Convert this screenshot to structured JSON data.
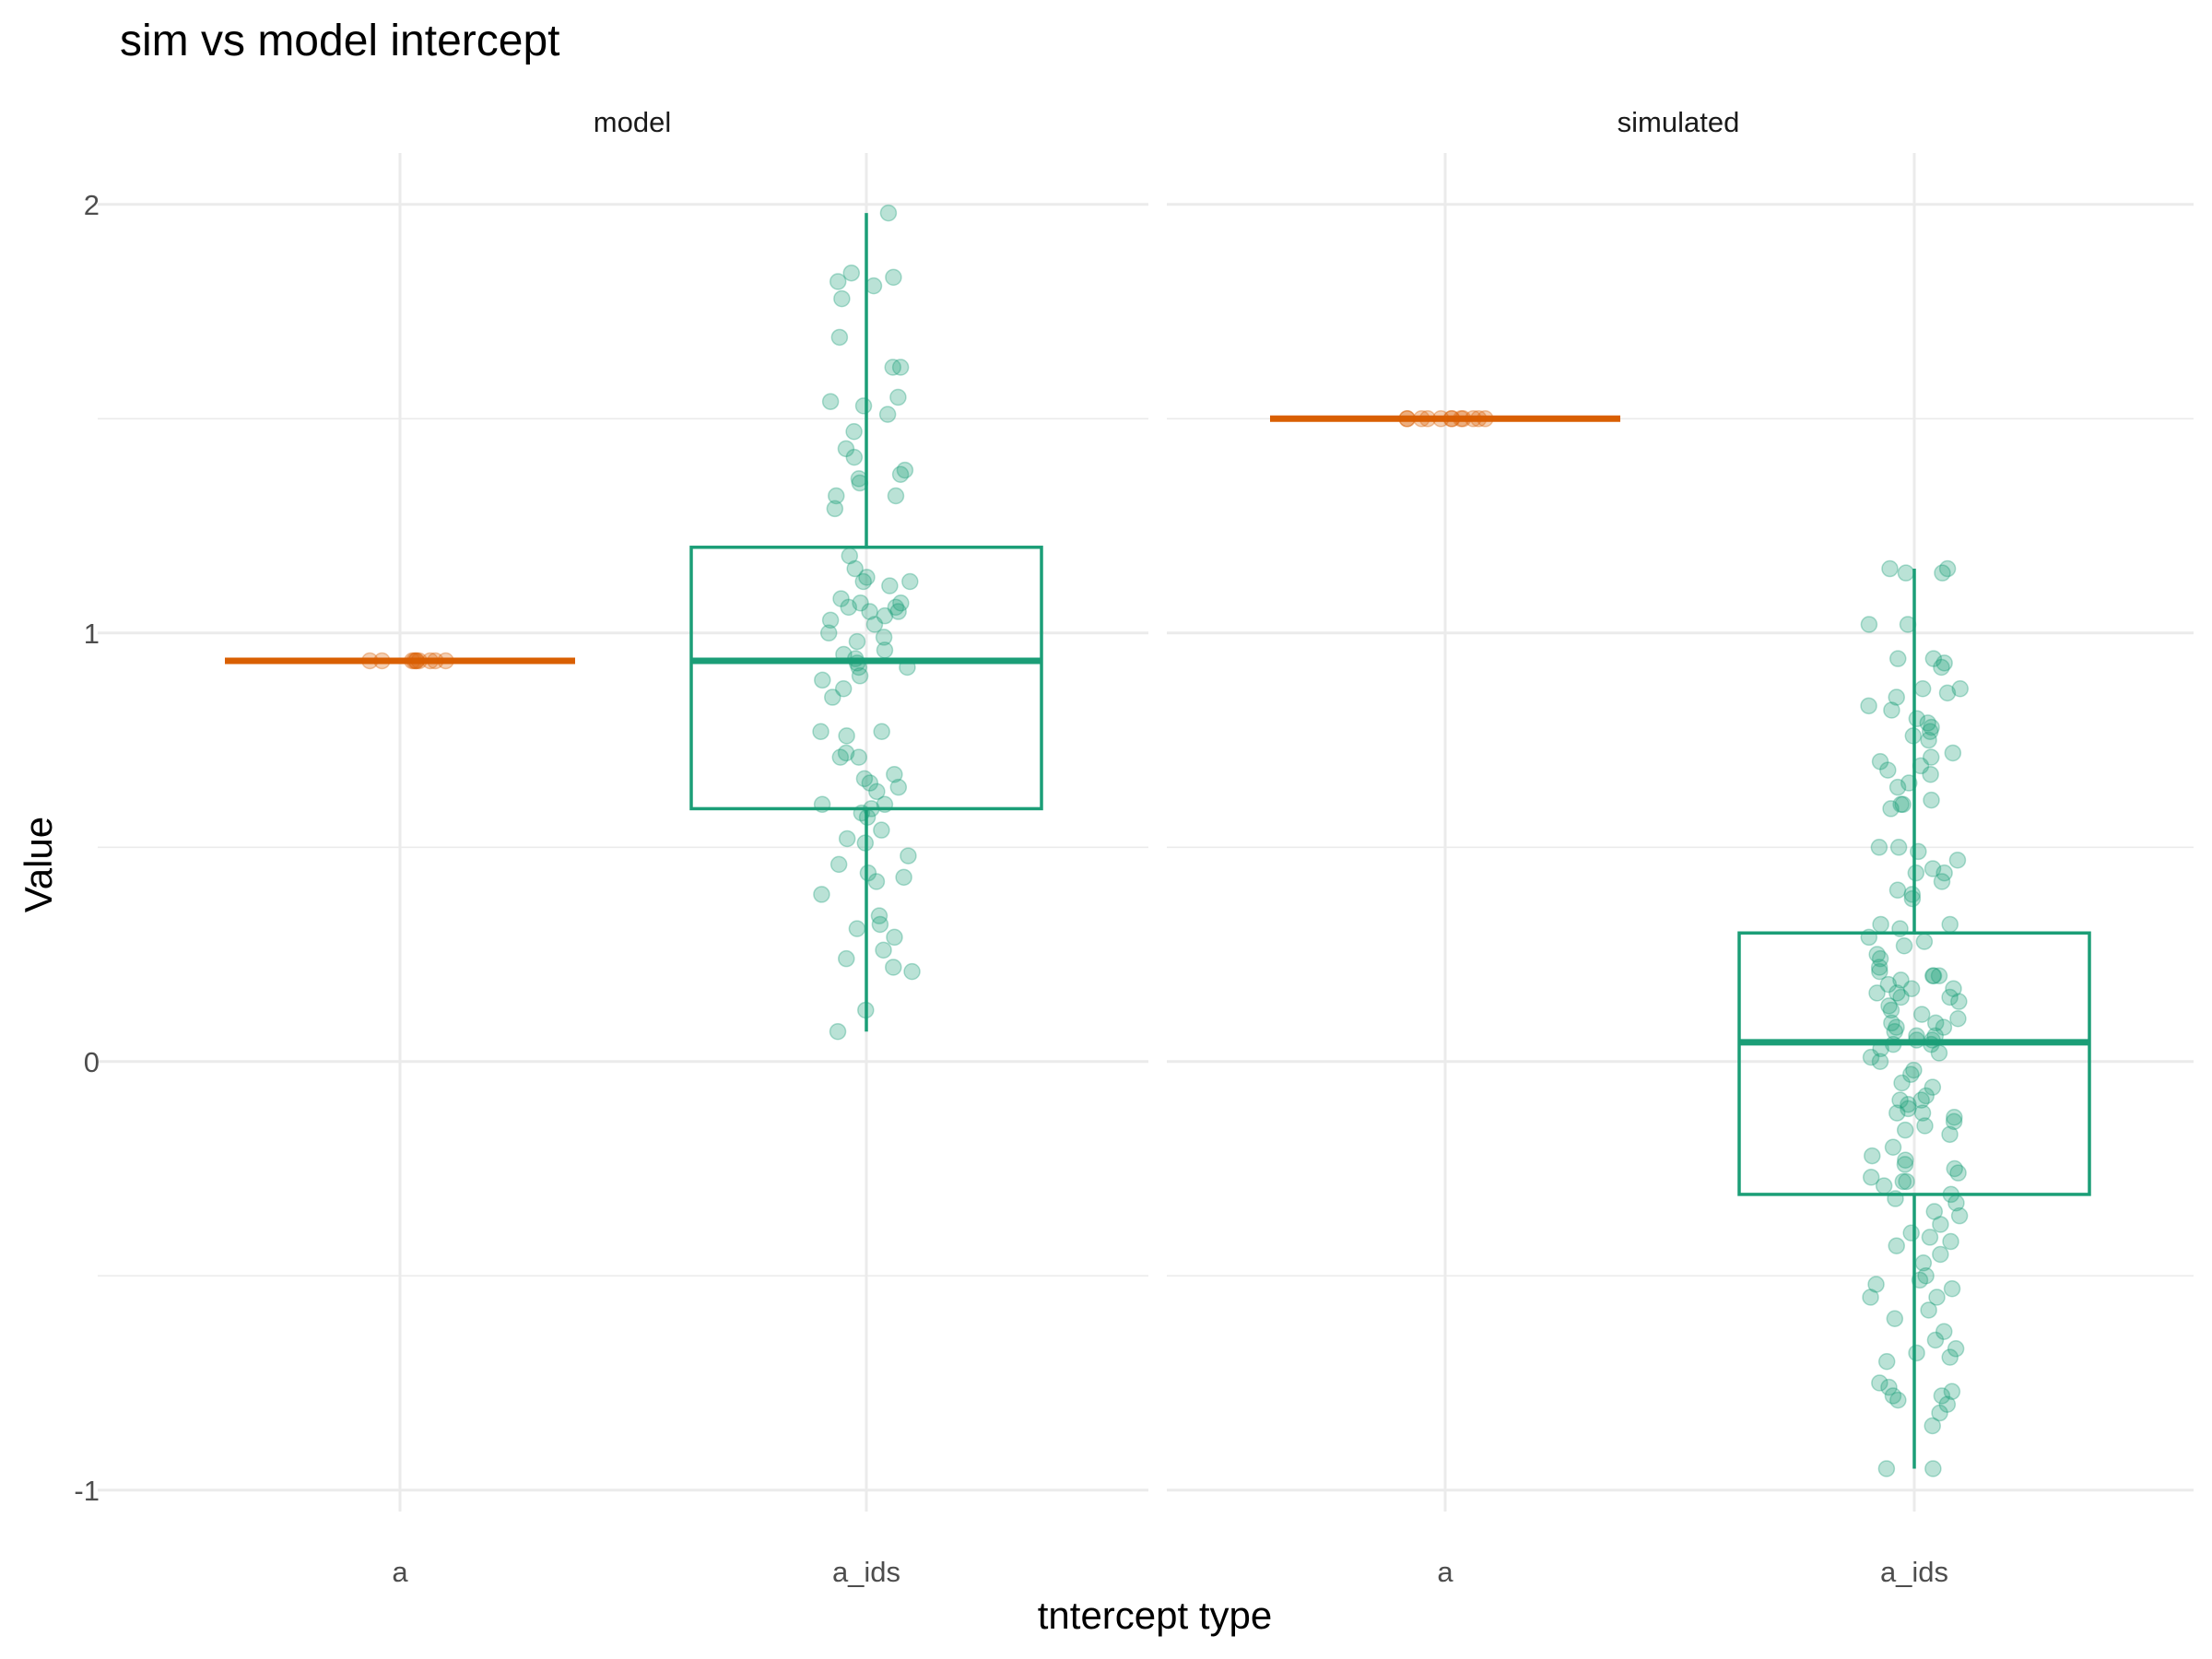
{
  "chart_data": {
    "type": "boxplot",
    "title": "sim vs model intercept",
    "xlabel": "tntercept type",
    "ylabel": "Value",
    "ylim": [
      -1.05,
      2.12
    ],
    "yticks": [
      -1,
      0,
      1,
      2
    ],
    "ytick_labels": [
      "-1",
      "0",
      "1",
      "2"
    ],
    "categories": [
      "a",
      "a_ids"
    ],
    "grid": true,
    "colors": {
      "a": "#D95F02",
      "a_ids": "#1B9E77"
    },
    "panels": [
      {
        "name": "model",
        "series": [
          {
            "category": "a",
            "box": {
              "min": 0.935,
              "q1": 0.935,
              "median": 0.935,
              "q3": 0.935,
              "max": 0.935
            },
            "points": [
              0.935,
              0.935,
              0.935,
              0.935,
              0.935,
              0.935,
              0.935,
              0.935,
              0.935,
              0.935
            ]
          },
          {
            "category": "a_ids",
            "box": {
              "min": 0.07,
              "q1": 0.59,
              "median": 0.935,
              "q3": 1.2,
              "max": 1.98
            },
            "points": [
              1.98,
              1.84,
              1.83,
              1.82,
              1.81,
              1.78,
              1.69,
              1.62,
              1.62,
              1.55,
              1.54,
              1.53,
              1.51,
              1.47,
              1.43,
              1.41,
              1.38,
              1.37,
              1.36,
              1.35,
              1.32,
              1.32,
              1.29,
              1.18,
              1.15,
              1.13,
              1.12,
              1.12,
              1.11,
              1.08,
              1.07,
              1.07,
              1.06,
              1.06,
              1.05,
              1.05,
              1.04,
              1.03,
              1.02,
              1.0,
              0.99,
              0.98,
              0.96,
              0.95,
              0.94,
              0.93,
              0.92,
              0.92,
              0.9,
              0.89,
              0.87,
              0.85,
              0.77,
              0.77,
              0.76,
              0.72,
              0.71,
              0.71,
              0.67,
              0.66,
              0.65,
              0.64,
              0.63,
              0.6,
              0.6,
              0.59,
              0.58,
              0.57,
              0.54,
              0.52,
              0.51,
              0.48,
              0.46,
              0.44,
              0.43,
              0.42,
              0.39,
              0.34,
              0.32,
              0.31,
              0.29,
              0.26,
              0.24,
              0.22,
              0.21,
              0.12,
              0.07
            ]
          }
        ]
      },
      {
        "name": "simulated",
        "series": [
          {
            "category": "a",
            "box": {
              "min": 1.5,
              "q1": 1.5,
              "median": 1.5,
              "q3": 1.5,
              "max": 1.5
            },
            "points": [
              1.5,
              1.5,
              1.5,
              1.5,
              1.5,
              1.5,
              1.5,
              1.5,
              1.5,
              1.5,
              1.5,
              1.5
            ]
          },
          {
            "category": "a_ids",
            "box": {
              "min": -0.95,
              "q1": -0.31,
              "median": 0.045,
              "q3": 0.3,
              "max": 1.15
            },
            "points": [
              1.15,
              1.15,
              1.14,
              1.14,
              1.02,
              1.02,
              0.94,
              0.94,
              0.93,
              0.92,
              0.87,
              0.87,
              0.86,
              0.85,
              0.83,
              0.82,
              0.8,
              0.79,
              0.78,
              0.77,
              0.76,
              0.75,
              0.72,
              0.71,
              0.7,
              0.69,
              0.68,
              0.67,
              0.65,
              0.64,
              0.61,
              0.6,
              0.6,
              0.59,
              0.5,
              0.5,
              0.49,
              0.47,
              0.45,
              0.44,
              0.44,
              0.42,
              0.4,
              0.39,
              0.38,
              0.32,
              0.32,
              0.31,
              0.29,
              0.28,
              0.27,
              0.25,
              0.24,
              0.22,
              0.21,
              0.2,
              0.2,
              0.2,
              0.19,
              0.18,
              0.17,
              0.17,
              0.16,
              0.16,
              0.15,
              0.15,
              0.14,
              0.13,
              0.12,
              0.11,
              0.1,
              0.09,
              0.09,
              0.08,
              0.08,
              0.07,
              0.06,
              0.06,
              0.05,
              0.05,
              0.04,
              0.04,
              0.03,
              0.02,
              0.01,
              0.0,
              -0.02,
              -0.03,
              -0.05,
              -0.06,
              -0.08,
              -0.09,
              -0.09,
              -0.1,
              -0.11,
              -0.12,
              -0.12,
              -0.13,
              -0.14,
              -0.15,
              -0.16,
              -0.17,
              -0.2,
              -0.22,
              -0.23,
              -0.24,
              -0.25,
              -0.26,
              -0.27,
              -0.28,
              -0.28,
              -0.29,
              -0.31,
              -0.32,
              -0.33,
              -0.35,
              -0.36,
              -0.38,
              -0.4,
              -0.41,
              -0.42,
              -0.43,
              -0.45,
              -0.47,
              -0.5,
              -0.51,
              -0.52,
              -0.53,
              -0.55,
              -0.55,
              -0.58,
              -0.6,
              -0.63,
              -0.65,
              -0.67,
              -0.68,
              -0.69,
              -0.7,
              -0.75,
              -0.76,
              -0.77,
              -0.78,
              -0.78,
              -0.79,
              -0.8,
              -0.82,
              -0.85,
              -0.95,
              -0.95
            ]
          }
        ]
      }
    ]
  }
}
